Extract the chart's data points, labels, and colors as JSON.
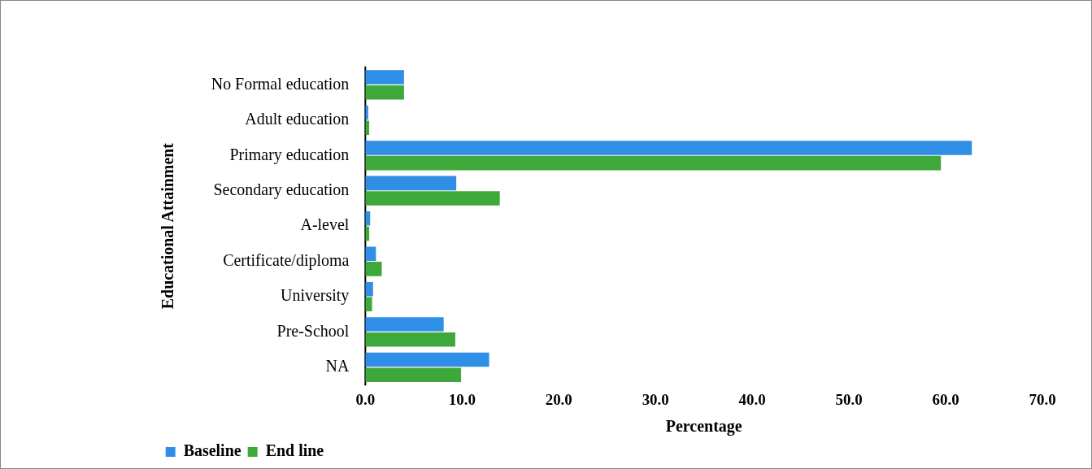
{
  "chart_data": {
    "type": "bar",
    "orientation": "horizontal",
    "xlabel": "Percentage",
    "ylabel": "Educational Attainment",
    "categories": [
      "No Formal education",
      "Adult education",
      "Primary education",
      "Secondary education",
      "A-level",
      "Certificate/diploma",
      "University",
      "Pre-School",
      "NA"
    ],
    "series": [
      {
        "name": "Baseline",
        "color": "#2f8fe6",
        "values": [
          4.0,
          0.3,
          62.7,
          9.4,
          0.5,
          1.1,
          0.8,
          8.1,
          12.8
        ]
      },
      {
        "name": "End line",
        "color": "#3fa83a",
        "values": [
          4.0,
          0.4,
          59.5,
          13.9,
          0.4,
          1.7,
          0.7,
          9.3,
          9.9
        ]
      }
    ],
    "xlim": [
      0,
      70
    ],
    "xticks": [
      {
        "value": 0,
        "label": "0.0"
      },
      {
        "value": 10,
        "label": "10.0"
      },
      {
        "value": 20,
        "label": "20.0"
      },
      {
        "value": 30,
        "label": "30.0"
      },
      {
        "value": 40,
        "label": "40.0"
      },
      {
        "value": 50,
        "label": "50.0"
      },
      {
        "value": 60,
        "label": "60.0"
      },
      {
        "value": 70,
        "label": "70.0"
      }
    ],
    "grid": false,
    "legend": "bottom left"
  }
}
